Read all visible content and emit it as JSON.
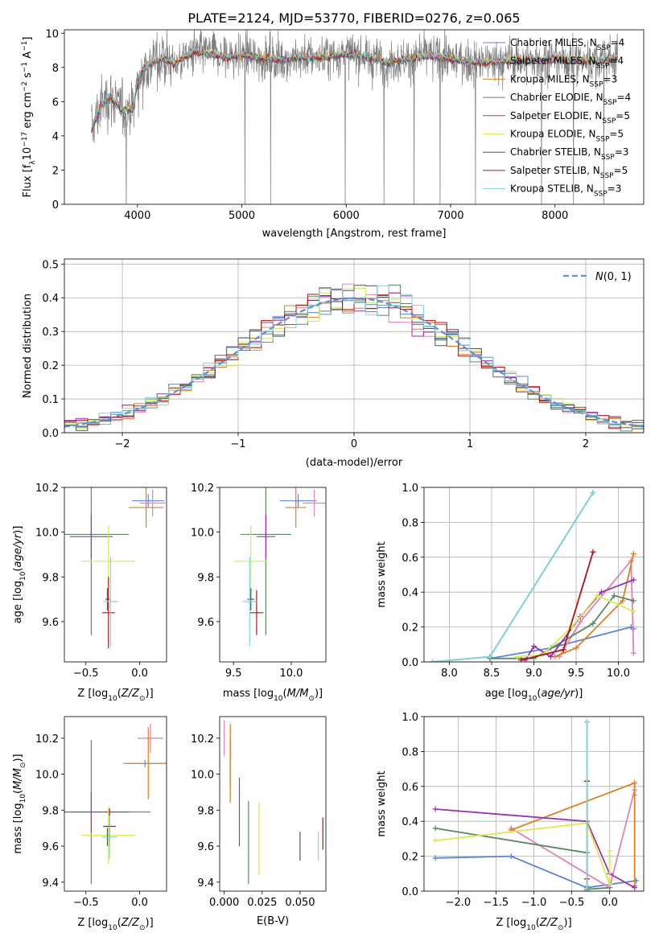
{
  "figure_title": "PLATE=2124, MJD=53770, FIBERID=0276, z=0.065",
  "colors": {
    "Chabrier MILES": "#5b86d6",
    "Salpeter MILES": "#e083b6",
    "Kroupa MILES": "#e07f20",
    "Chabrier ELODIE": "#5a8a62",
    "Salpeter ELODIE": "#9b30b2",
    "Kroupa ELODIE": "#d7ea53",
    "Chabrier STELIB": "#555555",
    "Salpeter STELIB": "#b01515",
    "Kroupa STELIB": "#7ed8d8",
    "data": "#7f7f7f",
    "normal": "#5b8fd6"
  },
  "chart_data": [
    {
      "id": "spectrum",
      "type": "line",
      "title": "PLATE=2124, MJD=53770, FIBERID=0276, z=0.065",
      "xlabel": "wavelength [Angstrom, rest frame]",
      "ylabel": "Flux [f_λ 10^-17 erg cm^-2 s^-1 A^-1]",
      "xlim": [
        3300,
        8850
      ],
      "ylim": [
        0,
        10.2
      ],
      "xticks": [
        4000,
        5000,
        6000,
        7000,
        8000
      ],
      "yticks": [
        0,
        2,
        4,
        6,
        8,
        10
      ],
      "legend": "top-right",
      "series": [
        {
          "name": "Chabrier MILES, N_SSP=4",
          "color_key": "Chabrier MILES"
        },
        {
          "name": "Salpeter MILES, N_SSP=4",
          "color_key": "Salpeter MILES"
        },
        {
          "name": "Kroupa MILES, N_SSP=3",
          "color_key": "Kroupa MILES"
        },
        {
          "name": "Chabrier ELODIE, N_SSP=4",
          "color_key": "Chabrier ELODIE"
        },
        {
          "name": "Salpeter ELODIE, N_SSP=5",
          "color_key": "Salpeter ELODIE"
        },
        {
          "name": "Kroupa ELODIE, N_SSP=5",
          "color_key": "Kroupa ELODIE"
        },
        {
          "name": "Chabrier STELIB, N_SSP=3",
          "color_key": "Chabrier STELIB"
        },
        {
          "name": "Salpeter STELIB, N_SSP=5",
          "color_key": "Salpeter STELIB"
        },
        {
          "name": "Kroupa STELIB, N_SSP=3",
          "color_key": "Kroupa STELIB"
        }
      ],
      "continuum": {
        "x": [
          3560,
          3650,
          3750,
          3850,
          3950,
          4000,
          4050,
          4150,
          4250,
          4350,
          4450,
          4550,
          4700,
          4850,
          5000,
          5200,
          5400,
          5600,
          5800,
          6000,
          6200,
          6400,
          6600,
          6800,
          7000,
          7200,
          7400,
          7600,
          7800,
          8000,
          8200,
          8400,
          8600
        ],
        "y": [
          4.3,
          5.8,
          6.3,
          5.5,
          5.6,
          7.0,
          7.9,
          8.3,
          8.5,
          8.2,
          8.6,
          8.9,
          8.8,
          8.6,
          8.7,
          8.5,
          8.5,
          8.6,
          8.6,
          8.8,
          8.6,
          8.3,
          8.5,
          8.7,
          8.5,
          8.3,
          8.3,
          8.4,
          8.4,
          8.5,
          8.4,
          8.4,
          8.6
        ]
      },
      "data_noise_amplitude": 0.9
    },
    {
      "id": "residuals",
      "type": "histogram",
      "xlabel": "(data-model)/error",
      "ylabel": "Normed distribution",
      "xlim": [
        -2.5,
        2.5
      ],
      "ylim": [
        0,
        0.515
      ],
      "xticks": [
        -2,
        -1,
        0,
        1,
        2
      ],
      "xtick_labels": [
        "−2",
        "−1",
        "0",
        "1",
        "2"
      ],
      "yticks": [
        0.0,
        0.1,
        0.2,
        0.3,
        0.4,
        0.5
      ],
      "ytick_labels": [
        "0.0",
        "0.1",
        "0.2",
        "0.3",
        "0.4",
        "0.5"
      ],
      "grid": true,
      "legend": "top-right",
      "normal_label": "N(0, 1)",
      "bin_width": 0.1
    },
    {
      "id": "age_vs_Z",
      "type": "errorbar",
      "xlabel": "Z [log10(Z/Z⊙)]",
      "ylabel": "age [log10(age/yr)]",
      "xlim": [
        -0.7,
        0.25
      ],
      "ylim": [
        9.42,
        10.2
      ],
      "xticks": [
        -0.5,
        0.0
      ],
      "xtick_labels": [
        "−0.5",
        "0.0"
      ],
      "yticks": [
        9.6,
        9.8,
        10.0,
        10.2
      ],
      "ytick_labels": [
        "9.6",
        "9.8",
        "10.0",
        "10.2"
      ],
      "points": [
        {
          "key": "Chabrier MILES",
          "x": 0.08,
          "xerr": 0.15,
          "y": 10.14,
          "yerr": 0.03
        },
        {
          "key": "Salpeter MILES",
          "x": 0.12,
          "xerr": 0.12,
          "y": 10.13,
          "yerr": 0.06
        },
        {
          "key": "Kroupa MILES",
          "x": 0.06,
          "xerr": 0.16,
          "y": 10.11,
          "yerr": 0.09
        },
        {
          "key": "Chabrier ELODIE",
          "x": -0.45,
          "xerr": 0.35,
          "y": 9.99,
          "yerr": 0.45
        },
        {
          "key": "Salpeter ELODIE",
          "x": -0.45,
          "xerr": 0.2,
          "y": 9.98,
          "yerr": 0.1
        },
        {
          "key": "Kroupa ELODIE",
          "x": -0.29,
          "xerr": 0.25,
          "y": 9.87,
          "yerr": 0.16
        },
        {
          "key": "Chabrier STELIB",
          "x": -0.3,
          "xerr": 0.02,
          "y": 9.7,
          "yerr": 0.05
        },
        {
          "key": "Salpeter STELIB",
          "x": -0.29,
          "xerr": 0.06,
          "y": 9.64,
          "yerr": 0.16
        },
        {
          "key": "Kroupa STELIB",
          "x": -0.27,
          "xerr": 0.07,
          "y": 9.69,
          "yerr": 0.2
        }
      ]
    },
    {
      "id": "age_vs_mass",
      "type": "errorbar",
      "xlabel": "mass [log10(M/M⊙)]",
      "ylabel": "",
      "xlim": [
        9.38,
        10.3
      ],
      "ylim": [
        9.42,
        10.2
      ],
      "xticks": [
        9.5,
        10.0
      ],
      "xtick_labels": [
        "9.5",
        "10.0"
      ],
      "yticks": [
        9.6,
        9.8,
        10.0,
        10.2
      ],
      "ytick_labels": [
        "9.6",
        "9.8",
        "10.0",
        "10.2"
      ],
      "points": [
        {
          "key": "Chabrier MILES",
          "x": 10.06,
          "xerr": 0.16,
          "y": 10.14,
          "yerr": 0.03
        },
        {
          "key": "Salpeter MILES",
          "x": 10.2,
          "xerr": 0.1,
          "y": 10.13,
          "yerr": 0.06
        },
        {
          "key": "Kroupa MILES",
          "x": 10.04,
          "xerr": 0.09,
          "y": 10.11,
          "yerr": 0.09
        },
        {
          "key": "Chabrier ELODIE",
          "x": 9.78,
          "xerr": 0.22,
          "y": 9.99,
          "yerr": 0.45
        },
        {
          "key": "Salpeter ELODIE",
          "x": 9.78,
          "xerr": 0.08,
          "y": 9.98,
          "yerr": 0.1
        },
        {
          "key": "Kroupa ELODIE",
          "x": 9.65,
          "xerr": 0.15,
          "y": 9.87,
          "yerr": 0.16
        },
        {
          "key": "Chabrier STELIB",
          "x": 9.65,
          "xerr": 0.03,
          "y": 9.7,
          "yerr": 0.05
        },
        {
          "key": "Salpeter STELIB",
          "x": 9.7,
          "xerr": 0.06,
          "y": 9.64,
          "yerr": 0.1
        },
        {
          "key": "Kroupa STELIB",
          "x": 9.64,
          "xerr": 0.06,
          "y": 9.69,
          "yerr": 0.2
        }
      ]
    },
    {
      "id": "weight_vs_age",
      "type": "line",
      "xlabel": "age [log10(age/yr)]",
      "ylabel": "mass weight",
      "xlim": [
        7.7,
        10.3
      ],
      "ylim": [
        0,
        1.0
      ],
      "xticks": [
        8.0,
        8.5,
        9.0,
        9.5,
        10.0
      ],
      "xtick_labels": [
        "8.0",
        "8.5",
        "9.0",
        "9.5",
        "10.0"
      ],
      "yticks": [
        0.0,
        0.2,
        0.4,
        0.6,
        0.8,
        1.0
      ],
      "ytick_labels": [
        "0.0",
        "0.2",
        "0.4",
        "0.6",
        "0.8",
        "1.0"
      ],
      "grid": true,
      "series": [
        {
          "key": "Chabrier MILES",
          "x": [
            8.48,
            9.2,
            10.15,
            10.18
          ],
          "y": [
            0.02,
            0.08,
            0.2,
            0.19
          ]
        },
        {
          "key": "Salpeter MILES",
          "x": [
            9.3,
            9.55,
            10.15,
            10.18
          ],
          "y": [
            0.03,
            0.23,
            0.58,
            0.05
          ]
        },
        {
          "key": "Kroupa MILES",
          "x": [
            9.25,
            9.5,
            10.05,
            10.18
          ],
          "y": [
            0.03,
            0.08,
            0.35,
            0.62
          ]
        },
        {
          "key": "Chabrier ELODIE",
          "x": [
            8.48,
            9.0,
            9.7,
            9.95,
            10.18
          ],
          "y": [
            0.02,
            0.02,
            0.22,
            0.38,
            0.35
          ]
        },
        {
          "key": "Salpeter ELODIE",
          "x": [
            8.9,
            9.0,
            9.2,
            9.55,
            9.8,
            10.18
          ],
          "y": [
            0.01,
            0.09,
            0.03,
            0.26,
            0.4,
            0.47
          ]
        },
        {
          "key": "Kroupa ELODIE",
          "x": [
            8.8,
            9.1,
            9.45,
            9.75,
            10.18
          ],
          "y": [
            0.03,
            0.04,
            0.2,
            0.38,
            0.29
          ]
        },
        {
          "key": "Chabrier STELIB",
          "x": [
            7.8,
            8.48,
            9.7
          ],
          "y": [
            0.0,
            0.03,
            0.97
          ]
        },
        {
          "key": "Salpeter STELIB",
          "x": [
            8.85,
            9.35,
            9.7
          ],
          "y": [
            0.01,
            0.07,
            0.63
          ]
        },
        {
          "key": "Kroupa STELIB",
          "x": [
            7.8,
            8.48,
            9.7
          ],
          "y": [
            0.0,
            0.03,
            0.97
          ]
        }
      ]
    },
    {
      "id": "mass_vs_Z",
      "type": "errorbar",
      "xlabel": "Z [log10(Z/Z⊙)]",
      "ylabel": "mass [log10(M/M⊙)]",
      "xlim": [
        -0.7,
        0.25
      ],
      "ylim": [
        9.35,
        10.32
      ],
      "xticks": [
        -0.5,
        0.0
      ],
      "xtick_labels": [
        "−0.5",
        "0.0"
      ],
      "yticks": [
        9.4,
        9.6,
        9.8,
        10.0,
        10.2
      ],
      "ytick_labels": [
        "9.4",
        "9.6",
        "9.8",
        "10.0",
        "10.2"
      ],
      "points": [
        {
          "key": "Chabrier MILES",
          "x": 0.05,
          "xerr": 0.2,
          "y": 10.06,
          "yerr": 0.02
        },
        {
          "key": "Salpeter MILES",
          "x": 0.1,
          "xerr": 0.12,
          "y": 10.2,
          "yerr": 0.08
        },
        {
          "key": "Kroupa MILES",
          "x": 0.08,
          "xerr": 0.2,
          "y": 10.06,
          "yerr": 0.2
        },
        {
          "key": "Chabrier ELODIE",
          "x": -0.45,
          "xerr": 0.55,
          "y": 9.79,
          "yerr": 0.4
        },
        {
          "key": "Salpeter ELODIE",
          "x": -0.45,
          "xerr": 0.35,
          "y": 9.79,
          "yerr": 0.11
        },
        {
          "key": "Kroupa ELODIE",
          "x": -0.29,
          "xerr": 0.25,
          "y": 9.66,
          "yerr": 0.16
        },
        {
          "key": "Chabrier STELIB",
          "x": -0.3,
          "xerr": 0.02,
          "y": 9.65,
          "yerr": 0.05
        },
        {
          "key": "Salpeter STELIB",
          "x": -0.28,
          "xerr": 0.06,
          "y": 9.71,
          "yerr": 0.1
        },
        {
          "key": "Kroupa STELIB",
          "x": -0.28,
          "xerr": 0.07,
          "y": 9.65,
          "yerr": 0.12
        }
      ]
    },
    {
      "id": "mass_vs_ebv",
      "type": "errorbar",
      "xlabel": "E(B-V)",
      "ylabel": "",
      "xlim": [
        -0.003,
        0.067
      ],
      "ylim": [
        9.35,
        10.32
      ],
      "xticks": [
        0.0,
        0.025,
        0.05
      ],
      "xtick_labels": [
        "0.000",
        "0.025",
        "0.050"
      ],
      "yticks": [
        9.4,
        9.6,
        9.8,
        10.0,
        10.2
      ],
      "ytick_labels": [
        "9.4",
        "9.6",
        "9.8",
        "10.0",
        "10.2"
      ],
      "points": [
        {
          "key": "Chabrier MILES",
          "x": 0.004,
          "xerr": 0.0,
          "y": 10.06,
          "yerr": 0.14
        },
        {
          "key": "Salpeter MILES",
          "x": 0.0,
          "xerr": 0.0,
          "y": 10.2,
          "yerr": 0.1
        },
        {
          "key": "Kroupa MILES",
          "x": 0.004,
          "xerr": 0.0,
          "y": 10.06,
          "yerr": 0.22
        },
        {
          "key": "Chabrier ELODIE",
          "x": 0.016,
          "xerr": 0.0,
          "y": 9.62,
          "yerr": 0.23
        },
        {
          "key": "Salpeter ELODIE",
          "x": 0.01,
          "xerr": 0.0,
          "y": 9.79,
          "yerr": 0.19
        },
        {
          "key": "Kroupa ELODIE",
          "x": 0.023,
          "xerr": 0.0,
          "y": 9.64,
          "yerr": 0.2
        },
        {
          "key": "Chabrier STELIB",
          "x": 0.05,
          "xerr": 0.0,
          "y": 9.6,
          "yerr": 0.08
        },
        {
          "key": "Salpeter STELIB",
          "x": 0.065,
          "xerr": 0.0,
          "y": 9.67,
          "yerr": 0.09
        },
        {
          "key": "Kroupa STELIB",
          "x": 0.062,
          "xerr": 0.0,
          "y": 9.6,
          "yerr": 0.08
        }
      ]
    },
    {
      "id": "weight_vs_Z",
      "type": "line",
      "xlabel": "Z [log10(Z/Z⊙)]",
      "ylabel": "mass weight",
      "xlim": [
        -2.45,
        0.45
      ],
      "ylim": [
        0,
        1.0
      ],
      "xticks": [
        -2.0,
        -1.5,
        -1.0,
        -0.5,
        0.0
      ],
      "xtick_labels": [
        "−2.0",
        "−1.5",
        "−1.0",
        "−0.5",
        "0.0"
      ],
      "yticks": [
        0.0,
        0.2,
        0.4,
        0.6,
        0.8,
        1.0
      ],
      "ytick_labels": [
        "0.0",
        "0.2",
        "0.4",
        "0.6",
        "0.8",
        "1.0"
      ],
      "grid": true,
      "series": [
        {
          "key": "Chabrier MILES",
          "x": [
            -2.3,
            -1.3,
            -0.3,
            0.35
          ],
          "y": [
            0.19,
            0.2,
            0.02,
            0.06
          ]
        },
        {
          "key": "Salpeter MILES",
          "x": [
            -1.3,
            0.0,
            0.33,
            0.33
          ],
          "y": [
            0.36,
            0.02,
            0.58,
            0.55
          ]
        },
        {
          "key": "Kroupa MILES",
          "x": [
            -1.3,
            0.33,
            0.33,
            0.33
          ],
          "y": [
            0.35,
            0.62,
            0.03,
            0.03
          ]
        },
        {
          "key": "Chabrier ELODIE",
          "x": [
            -2.3,
            -0.3,
            -0.3,
            0.0
          ],
          "y": [
            0.36,
            0.22,
            0.01,
            0.02
          ]
        },
        {
          "key": "Salpeter ELODIE",
          "x": [
            -2.3,
            -0.3,
            0.0,
            0.33
          ],
          "y": [
            0.47,
            0.4,
            0.1,
            0.02
          ]
        },
        {
          "key": "Kroupa ELODIE",
          "x": [
            -2.3,
            -0.3,
            0.0,
            0.0
          ],
          "y": [
            0.29,
            0.39,
            0.04,
            0.23
          ]
        },
        {
          "key": "Chabrier STELIB",
          "x": [
            -0.3,
            -0.3,
            -0.3
          ],
          "y": [
            0.97,
            0.0,
            0.63
          ]
        },
        {
          "key": "Salpeter STELIB",
          "x": [
            -0.3,
            -0.3,
            -0.3
          ],
          "y": [
            0.63,
            0.07,
            0.0
          ]
        },
        {
          "key": "Kroupa STELIB",
          "x": [
            -0.3,
            -0.3,
            -0.3
          ],
          "y": [
            0.97,
            0.03,
            0.0
          ]
        }
      ]
    }
  ]
}
